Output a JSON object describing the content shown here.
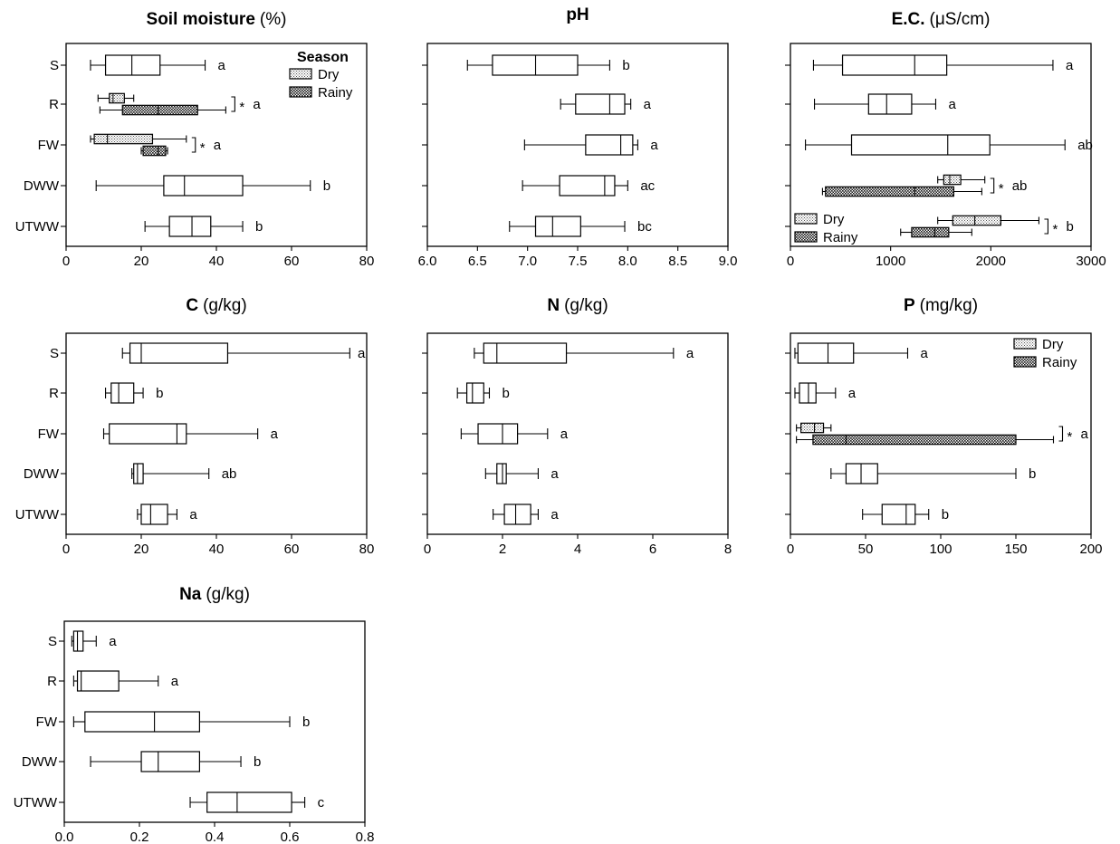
{
  "colors": {
    "line": "#000000",
    "plain_fill": "#ffffff",
    "dry_fill": "#d9d9d9",
    "rainy_fill": "#707070"
  },
  "categories": [
    "S",
    "R",
    "FW",
    "DWW",
    "UTWW"
  ],
  "chart_data": [
    {
      "type": "box",
      "title_bold": "Soil moisture",
      "title_unit": "(%)",
      "xlim": [
        0,
        80
      ],
      "xticks": [
        "0",
        "20",
        "40",
        "60",
        "80"
      ],
      "legend": {
        "title": "Season",
        "placement": "top-right",
        "entries": [
          "Dry",
          "Rainy"
        ]
      },
      "rows": [
        {
          "cat": "S",
          "letter": "a",
          "boxes": [
            {
              "fill": "plain",
              "min": 6.5,
              "q1": 10.5,
              "med": 17.5,
              "q3": 25,
              "max": 37
            }
          ]
        },
        {
          "cat": "R",
          "letter": "a",
          "star": "*",
          "boxes": [
            {
              "fill": "dry",
              "min": 8.5,
              "q1": 11.5,
              "med": 12.5,
              "q3": 15.5,
              "max": 18
            },
            {
              "fill": "rainy",
              "min": 9,
              "q1": 15,
              "med": 24.5,
              "q3": 35,
              "max": 42.5
            }
          ]
        },
        {
          "cat": "FW",
          "letter": "a",
          "star": "*",
          "boxes": [
            {
              "fill": "dry",
              "min": 6.5,
              "q1": 7.5,
              "med": 11,
              "q3": 23,
              "max": 32
            },
            {
              "fill": "rainy",
              "min": 20,
              "q1": 20.5,
              "med": 24.5,
              "q3": 26.5,
              "max": 27
            }
          ]
        },
        {
          "cat": "DWW",
          "letter": "b",
          "boxes": [
            {
              "fill": "plain",
              "min": 8,
              "q1": 26,
              "med": 31.5,
              "q3": 47,
              "max": 65
            }
          ]
        },
        {
          "cat": "UTWW",
          "letter": "b",
          "boxes": [
            {
              "fill": "plain",
              "min": 21,
              "q1": 27.5,
              "med": 33.5,
              "q3": 38.5,
              "max": 47
            }
          ]
        }
      ]
    },
    {
      "type": "box",
      "title_bold": "pH",
      "title_unit": "",
      "xlim": [
        6.0,
        9.0
      ],
      "xticks": [
        "6.0",
        "6.5",
        "7.0",
        "7.5",
        "8.0",
        "8.5",
        "9.0"
      ],
      "rows": [
        {
          "cat": "S",
          "letter": "b",
          "boxes": [
            {
              "fill": "plain",
              "min": 6.4,
              "q1": 6.65,
              "med": 7.08,
              "q3": 7.5,
              "max": 7.82
            }
          ]
        },
        {
          "cat": "R",
          "letter": "a",
          "boxes": [
            {
              "fill": "plain",
              "min": 7.33,
              "q1": 7.48,
              "med": 7.82,
              "q3": 7.97,
              "max": 8.03
            }
          ]
        },
        {
          "cat": "FW",
          "letter": "a",
          "boxes": [
            {
              "fill": "plain",
              "min": 6.97,
              "q1": 7.58,
              "med": 7.93,
              "q3": 8.05,
              "max": 8.1
            }
          ]
        },
        {
          "cat": "DWW",
          "letter": "ac",
          "boxes": [
            {
              "fill": "plain",
              "min": 6.95,
              "q1": 7.32,
              "med": 7.77,
              "q3": 7.87,
              "max": 8.0
            }
          ]
        },
        {
          "cat": "UTWW",
          "letter": "bc",
          "boxes": [
            {
              "fill": "plain",
              "min": 6.82,
              "q1": 7.08,
              "med": 7.25,
              "q3": 7.53,
              "max": 7.97
            }
          ]
        }
      ]
    },
    {
      "type": "box",
      "title_bold": "E.C.",
      "title_unit": "(μS/cm)",
      "xlim": [
        0,
        3000
      ],
      "xticks": [
        "0",
        "1000",
        "2000",
        "3000"
      ],
      "legend": {
        "title": "",
        "placement": "bottom-left",
        "entries": [
          "Dry",
          "Rainy"
        ]
      },
      "rows": [
        {
          "cat": "S",
          "letter": "a",
          "boxes": [
            {
              "fill": "plain",
              "min": 230,
              "q1": 520,
              "med": 1240,
              "q3": 1560,
              "max": 2620
            }
          ]
        },
        {
          "cat": "R",
          "letter": "a",
          "boxes": [
            {
              "fill": "plain",
              "min": 240,
              "q1": 780,
              "med": 960,
              "q3": 1210,
              "max": 1450
            }
          ]
        },
        {
          "cat": "FW",
          "letter": "ab",
          "boxes": [
            {
              "fill": "plain",
              "min": 150,
              "q1": 610,
              "med": 1570,
              "q3": 1990,
              "max": 2740
            }
          ]
        },
        {
          "cat": "DWW",
          "letter": "ab",
          "star": "*",
          "boxes": [
            {
              "fill": "dry",
              "min": 1470,
              "q1": 1530,
              "med": 1590,
              "q3": 1700,
              "max": 1940
            },
            {
              "fill": "rainy",
              "min": 320,
              "q1": 350,
              "med": 1240,
              "q3": 1630,
              "max": 1910
            }
          ]
        },
        {
          "cat": "UTWW",
          "letter": "b",
          "star": "*",
          "boxes": [
            {
              "fill": "dry",
              "min": 1470,
              "q1": 1620,
              "med": 1840,
              "q3": 2100,
              "max": 2480
            },
            {
              "fill": "rainy",
              "min": 1100,
              "q1": 1210,
              "med": 1440,
              "q3": 1580,
              "max": 1810
            }
          ]
        }
      ]
    },
    {
      "type": "box",
      "title_bold": "C",
      "title_unit": "(g/kg)",
      "xlim": [
        0,
        80
      ],
      "xticks": [
        "0",
        "20",
        "40",
        "60",
        "80"
      ],
      "rows": [
        {
          "cat": "S",
          "letter": "a",
          "boxes": [
            {
              "fill": "plain",
              "min": 15,
              "q1": 17,
              "med": 20,
              "q3": 43,
              "max": 75.5
            }
          ]
        },
        {
          "cat": "R",
          "letter": "b",
          "boxes": [
            {
              "fill": "plain",
              "min": 10.5,
              "q1": 12,
              "med": 14,
              "q3": 18,
              "max": 20.5
            }
          ]
        },
        {
          "cat": "FW",
          "letter": "a",
          "boxes": [
            {
              "fill": "plain",
              "min": 10,
              "q1": 11.5,
              "med": 29.5,
              "q3": 32,
              "max": 51
            }
          ]
        },
        {
          "cat": "DWW",
          "letter": "ab",
          "boxes": [
            {
              "fill": "plain",
              "min": 17.5,
              "q1": 18,
              "med": 19,
              "q3": 20.5,
              "max": 38
            }
          ]
        },
        {
          "cat": "UTWW",
          "letter": "a",
          "boxes": [
            {
              "fill": "plain",
              "min": 19,
              "q1": 20,
              "med": 22.5,
              "q3": 27,
              "max": 29.5
            }
          ]
        }
      ]
    },
    {
      "type": "box",
      "title_bold": "N",
      "title_unit": "(g/kg)",
      "xlim": [
        0,
        8
      ],
      "xticks": [
        "0",
        "2",
        "4",
        "6",
        "8"
      ],
      "rows": [
        {
          "cat": "S",
          "letter": "a",
          "boxes": [
            {
              "fill": "plain",
              "min": 1.25,
              "q1": 1.5,
              "med": 1.85,
              "q3": 3.7,
              "max": 6.55
            }
          ]
        },
        {
          "cat": "R",
          "letter": "b",
          "boxes": [
            {
              "fill": "plain",
              "min": 0.8,
              "q1": 1.05,
              "med": 1.2,
              "q3": 1.5,
              "max": 1.65
            }
          ]
        },
        {
          "cat": "FW",
          "letter": "a",
          "boxes": [
            {
              "fill": "plain",
              "min": 0.9,
              "q1": 1.35,
              "med": 2.0,
              "q3": 2.4,
              "max": 3.2
            }
          ]
        },
        {
          "cat": "DWW",
          "letter": "a",
          "boxes": [
            {
              "fill": "plain",
              "min": 1.55,
              "q1": 1.85,
              "med": 2.0,
              "q3": 2.1,
              "max": 2.95
            }
          ]
        },
        {
          "cat": "UTWW",
          "letter": "a",
          "boxes": [
            {
              "fill": "plain",
              "min": 1.75,
              "q1": 2.05,
              "med": 2.35,
              "q3": 2.75,
              "max": 2.95
            }
          ]
        }
      ]
    },
    {
      "type": "box",
      "title_bold": "P",
      "title_unit": "(mg/kg)",
      "xlim": [
        0,
        200
      ],
      "xticks": [
        "0",
        "50",
        "100",
        "150",
        "200"
      ],
      "legend": {
        "title": "",
        "placement": "top-right",
        "entries": [
          "Dry",
          "Rainy"
        ]
      },
      "rows": [
        {
          "cat": "S",
          "letter": "a",
          "boxes": [
            {
              "fill": "plain",
              "min": 3,
              "q1": 5,
              "med": 25,
              "q3": 42,
              "max": 78
            }
          ]
        },
        {
          "cat": "R",
          "letter": "a",
          "boxes": [
            {
              "fill": "plain",
              "min": 3,
              "q1": 6,
              "med": 12,
              "q3": 17,
              "max": 30
            }
          ]
        },
        {
          "cat": "FW",
          "letter": "a",
          "star": "*",
          "boxes": [
            {
              "fill": "dry",
              "min": 4,
              "q1": 7,
              "med": 16,
              "q3": 22,
              "max": 27
            },
            {
              "fill": "rainy",
              "min": 4,
              "q1": 15,
              "med": 37,
              "q3": 150,
              "max": 175
            }
          ]
        },
        {
          "cat": "DWW",
          "letter": "b",
          "boxes": [
            {
              "fill": "plain",
              "min": 27,
              "q1": 37,
              "med": 47,
              "q3": 58,
              "max": 150
            }
          ]
        },
        {
          "cat": "UTWW",
          "letter": "b",
          "boxes": [
            {
              "fill": "plain",
              "min": 48,
              "q1": 61,
              "med": 77,
              "q3": 83,
              "max": 92
            }
          ]
        }
      ]
    },
    {
      "type": "box",
      "title_bold": "Na",
      "title_unit": "(g/kg)",
      "xlim": [
        0,
        0.8
      ],
      "xticks": [
        "0.0",
        "0.2",
        "0.4",
        "0.6",
        "0.8"
      ],
      "rows": [
        {
          "cat": "S",
          "letter": "a",
          "boxes": [
            {
              "fill": "plain",
              "min": 0.02,
              "q1": 0.025,
              "med": 0.035,
              "q3": 0.05,
              "max": 0.085
            }
          ]
        },
        {
          "cat": "R",
          "letter": "a",
          "boxes": [
            {
              "fill": "plain",
              "min": 0.025,
              "q1": 0.035,
              "med": 0.045,
              "q3": 0.145,
              "max": 0.25
            }
          ]
        },
        {
          "cat": "FW",
          "letter": "b",
          "boxes": [
            {
              "fill": "plain",
              "min": 0.025,
              "q1": 0.055,
              "med": 0.24,
              "q3": 0.36,
              "max": 0.6
            }
          ]
        },
        {
          "cat": "DWW",
          "letter": "b",
          "boxes": [
            {
              "fill": "plain",
              "min": 0.07,
              "q1": 0.205,
              "med": 0.25,
              "q3": 0.36,
              "max": 0.47
            }
          ]
        },
        {
          "cat": "UTWW",
          "letter": "c",
          "boxes": [
            {
              "fill": "plain",
              "min": 0.335,
              "q1": 0.38,
              "med": 0.46,
              "q3": 0.605,
              "max": 0.64
            }
          ]
        }
      ]
    }
  ]
}
